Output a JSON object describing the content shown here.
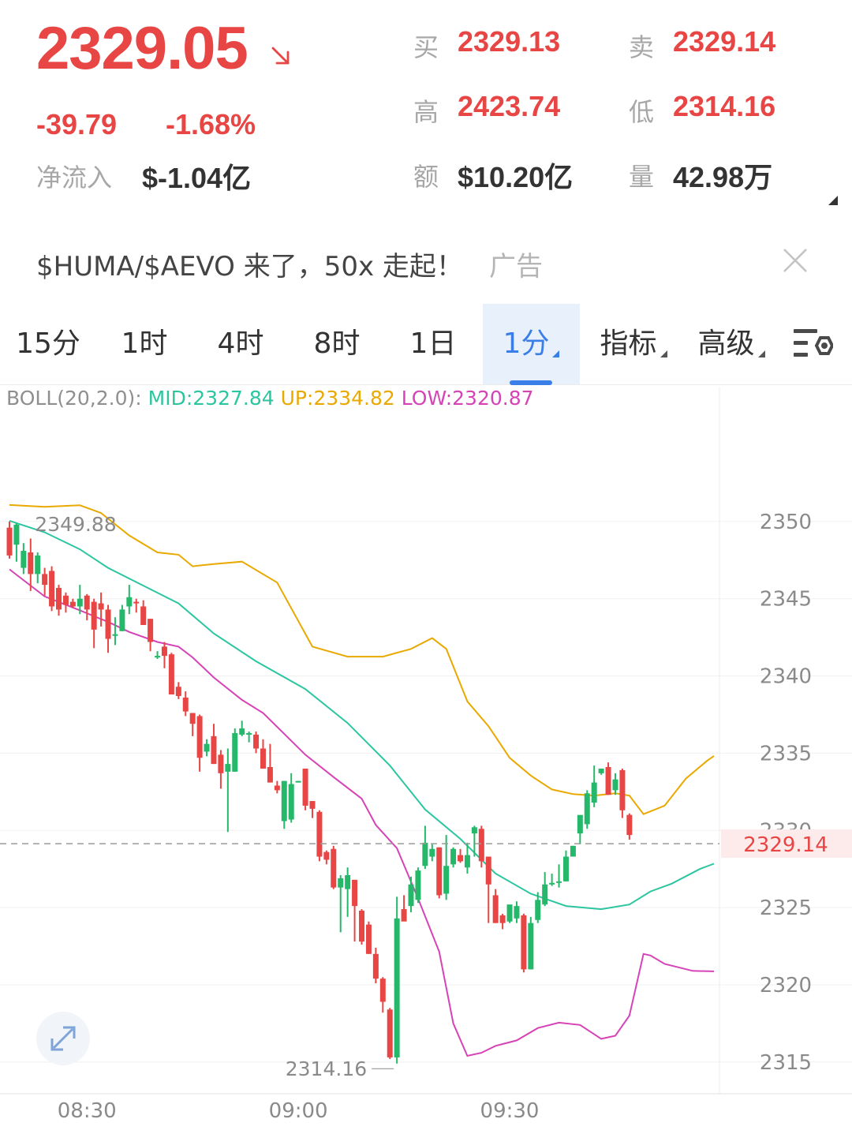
{
  "quote": {
    "last_price": "2329.05",
    "change": "-39.79",
    "change_pct": "-1.68%",
    "net_inflow_label": "净流入",
    "net_inflow_value": "$-1.04亿",
    "bid_label": "买",
    "bid_value": "2329.13",
    "ask_label": "卖",
    "ask_value": "2329.14",
    "high_label": "高",
    "high_value": "2423.74",
    "low_label": "低",
    "low_value": "2314.16",
    "amount_label": "额",
    "amount_value": "$10.20亿",
    "volume_label": "量",
    "volume_value": "42.98万",
    "down_color": "#e84545",
    "up_color": "#26b86a"
  },
  "ad": {
    "text": "$HUMA/$AEVO 来了，50x 走起！",
    "tag": "广告",
    "close_icon": "close-icon"
  },
  "tabs": [
    {
      "label": "15分",
      "active": false
    },
    {
      "label": "1时",
      "active": false
    },
    {
      "label": "4时",
      "active": false
    },
    {
      "label": "8时",
      "active": false
    },
    {
      "label": "1日",
      "active": false
    },
    {
      "label": "1分",
      "active": true
    },
    {
      "label": "指标",
      "active": false
    },
    {
      "label": "高级",
      "active": false
    }
  ],
  "settings_icon": "chart-settings-icon",
  "indicator": {
    "prefix": "BOLL(20,2.0):",
    "mid": "MID:2327.84",
    "up": "UP:2334.82",
    "low": "LOW:2320.87"
  },
  "chart_data": {
    "type": "candlestick",
    "interval": "1分",
    "y_ticks": [
      "2350",
      "2345",
      "2340",
      "2335",
      "2330",
      "2325",
      "2320",
      "2315"
    ],
    "ylim": [
      2313,
      2354
    ],
    "x_ticks": [
      {
        "label": "08:30",
        "index": 11
      },
      {
        "label": "09:00",
        "index": 41
      },
      {
        "label": "09:30",
        "index": 71
      }
    ],
    "current_price_label": "2329.14",
    "current_price": 2329.14,
    "max_label": "2349.88",
    "min_label": "2314.16",
    "colors": {
      "up": "#26b86a",
      "down": "#e84545",
      "mid": "#2bc6a0",
      "upper": "#e9a900",
      "lower": "#d643b6"
    },
    "candles": [
      [
        2349.6,
        2347.8,
        2350.0,
        2347.6
      ],
      [
        2348.5,
        2349.8,
        2349.9,
        2347.4
      ],
      [
        2347.0,
        2348.1,
        2348.6,
        2346.6
      ],
      [
        2348.0,
        2346.6,
        2348.9,
        2345.5
      ],
      [
        2346.6,
        2347.8,
        2348.0,
        2346.0
      ],
      [
        2346.6,
        2345.9,
        2347.0,
        2345.2
      ],
      [
        2346.8,
        2344.5,
        2347.1,
        2344.2
      ],
      [
        2345.7,
        2344.3,
        2345.9,
        2343.9
      ],
      [
        2345.2,
        2344.6,
        2345.4,
        2344.1
      ],
      [
        2344.8,
        2344.5,
        2345.0,
        2344.4
      ],
      [
        2344.5,
        2345.0,
        2345.9,
        2344.0
      ],
      [
        2345.2,
        2344.3,
        2345.3,
        2343.6
      ],
      [
        2344.8,
        2343.0,
        2345.0,
        2341.8
      ],
      [
        2344.7,
        2344.3,
        2345.4,
        2343.2
      ],
      [
        2344.3,
        2342.4,
        2344.6,
        2341.5
      ],
      [
        2342.6,
        2342.7,
        2343.8,
        2342.0
      ],
      [
        2342.9,
        2344.3,
        2344.6,
        2342.9
      ],
      [
        2344.5,
        2345.1,
        2345.9,
        2344.0
      ],
      [
        2344.8,
        2344.7,
        2345.0,
        2344.1
      ],
      [
        2344.5,
        2343.3,
        2344.9,
        2343.3
      ],
      [
        2343.7,
        2342.2,
        2343.7,
        2341.6
      ],
      [
        2341.3,
        2341.3,
        2341.6,
        2341.1
      ],
      [
        2341.9,
        2341.3,
        2342.2,
        2340.5
      ],
      [
        2341.4,
        2338.8,
        2341.5,
        2338.8
      ],
      [
        2339.3,
        2338.7,
        2339.6,
        2338.5
      ],
      [
        2338.6,
        2337.7,
        2339.0,
        2337.4
      ],
      [
        2337.6,
        2336.9,
        2337.6,
        2336.1
      ],
      [
        2337.4,
        2334.7,
        2337.5,
        2333.8
      ],
      [
        2335.1,
        2335.6,
        2335.9,
        2334.8
      ],
      [
        2336.1,
        2334.3,
        2336.9,
        2334.3
      ],
      [
        2334.9,
        2333.7,
        2335.2,
        2332.7
      ],
      [
        2333.8,
        2334.3,
        2335.3,
        2329.9
      ],
      [
        2333.8,
        2336.3,
        2336.6,
        2333.8
      ],
      [
        2336.2,
        2336.6,
        2337.1,
        2336.1
      ],
      [
        2336.3,
        2336.3,
        2336.4,
        2335.7
      ],
      [
        2336.2,
        2335.3,
        2336.4,
        2335.0
      ],
      [
        2335.3,
        2334.0,
        2335.9,
        2334.0
      ],
      [
        2334.1,
        2333.1,
        2335.6,
        2333.1
      ],
      [
        2332.9,
        2332.6,
        2333.2,
        2332.4
      ],
      [
        2330.6,
        2333.2,
        2333.2,
        2330.1
      ],
      [
        2330.7,
        2333.0,
        2333.7,
        2330.5
      ],
      [
        2333.1,
        2333.2,
        2333.2,
        2333.1
      ],
      [
        2334.0,
        2331.6,
        2334.0,
        2331.3
      ],
      [
        2331.9,
        2331.4,
        2331.9,
        2330.8
      ],
      [
        2331.2,
        2328.3,
        2331.3,
        2328.0
      ],
      [
        2328.6,
        2328.1,
        2328.7,
        2327.8
      ],
      [
        2328.8,
        2326.3,
        2329.0,
        2326.2
      ],
      [
        2326.3,
        2326.9,
        2327.1,
        2323.4
      ],
      [
        2326.2,
        2327.1,
        2327.6,
        2324.4
      ],
      [
        2326.8,
        2325.1,
        2326.8,
        2322.8
      ],
      [
        2324.8,
        2322.8,
        2324.9,
        2322.6
      ],
      [
        2323.9,
        2322.0,
        2324.1,
        2322.0
      ],
      [
        2322.0,
        2320.4,
        2322.4,
        2320.1
      ],
      [
        2320.4,
        2318.9,
        2320.5,
        2318.2
      ],
      [
        2318.4,
        2315.3,
        2318.5,
        2315.2
      ],
      [
        2315.3,
        2324.3,
        2325.7,
        2314.9
      ],
      [
        2324.9,
        2324.1,
        2325.8,
        2324.4
      ],
      [
        2325.1,
        2326.5,
        2327.0,
        2324.7
      ],
      [
        2325.5,
        2327.4,
        2327.6,
        2325.3
      ],
      [
        2327.7,
        2329.2,
        2330.3,
        2327.5
      ],
      [
        2328.3,
        2328.8,
        2329.1,
        2328.0
      ],
      [
        2328.9,
        2325.8,
        2328.9,
        2325.6
      ],
      [
        2325.9,
        2327.7,
        2329.7,
        2325.5
      ],
      [
        2327.8,
        2328.8,
        2328.9,
        2327.6
      ],
      [
        2328.4,
        2328.0,
        2328.8,
        2327.9
      ],
      [
        2327.6,
        2328.4,
        2329.2,
        2327.2
      ],
      [
        2329.8,
        2330.2,
        2330.3,
        2328.3
      ],
      [
        2330.1,
        2328.0,
        2330.3,
        2327.6
      ],
      [
        2328.3,
        2326.5,
        2328.3,
        2324.0
      ],
      [
        2325.8,
        2324.0,
        2326.2,
        2324.0
      ],
      [
        2324.5,
        2324.0,
        2324.6,
        2323.6
      ],
      [
        2324.1,
        2325.2,
        2324.9,
        2324.0
      ],
      [
        2324.3,
        2325.1,
        2325.4,
        2324.0
      ],
      [
        2324.5,
        2321.0,
        2324.6,
        2320.8
      ],
      [
        2321.0,
        2324.0,
        2324.4,
        2321.0
      ],
      [
        2324.2,
        2325.5,
        2326.0,
        2324.0
      ],
      [
        2325.2,
        2326.5,
        2327.3,
        2325.1
      ],
      [
        2326.6,
        2326.6,
        2327.2,
        2326.4
      ],
      [
        2326.6,
        2326.7,
        2327.8,
        2326.3
      ],
      [
        2326.7,
        2328.3,
        2328.7,
        2326.7
      ],
      [
        2328.3,
        2329.0,
        2329.0,
        2328.5
      ],
      [
        2329.8,
        2331.0,
        2330.7,
        2329.1
      ],
      [
        2330.4,
        2332.4,
        2332.6,
        2330.1
      ],
      [
        2331.8,
        2333.1,
        2334.2,
        2331.5
      ],
      [
        2333.7,
        2334.0,
        2334.0,
        2333.6
      ],
      [
        2334.1,
        2332.3,
        2334.4,
        2332.3
      ],
      [
        2332.6,
        2333.3,
        2333.7,
        2332.3
      ],
      [
        2333.9,
        2331.3,
        2334.0,
        2330.8
      ],
      [
        2331.0,
        2329.7,
        2331.1,
        2329.4
      ]
    ],
    "upper_band": [
      [
        0,
        2351.07
      ],
      [
        5,
        2350.95
      ],
      [
        10,
        2351.05
      ],
      [
        13,
        2350.55
      ],
      [
        17,
        2349.1
      ],
      [
        21,
        2348.0
      ],
      [
        24,
        2347.85
      ],
      [
        26,
        2347.1
      ],
      [
        29,
        2347.25
      ],
      [
        33,
        2347.4
      ],
      [
        38,
        2346.05
      ],
      [
        43,
        2341.9
      ],
      [
        48,
        2341.25
      ],
      [
        53,
        2341.25
      ],
      [
        57,
        2341.75
      ],
      [
        60,
        2342.45
      ],
      [
        62,
        2341.75
      ],
      [
        65,
        2338.35
      ],
      [
        68,
        2336.75
      ],
      [
        71,
        2334.7
      ],
      [
        74,
        2333.55
      ],
      [
        77,
        2332.65
      ],
      [
        80,
        2332.35
      ],
      [
        83,
        2332.25
      ],
      [
        86,
        2332.4
      ],
      [
        88,
        2332.25
      ],
      [
        90,
        2331.05
      ],
      [
        93,
        2331.6
      ],
      [
        96,
        2333.35
      ],
      [
        99,
        2334.5
      ],
      [
        100,
        2334.82
      ]
    ],
    "mid_band": [
      [
        0,
        2350.05
      ],
      [
        5,
        2349.3
      ],
      [
        10,
        2348.2
      ],
      [
        14,
        2347.0
      ],
      [
        19,
        2345.85
      ],
      [
        24,
        2344.7
      ],
      [
        29,
        2342.75
      ],
      [
        35,
        2340.95
      ],
      [
        42,
        2339.15
      ],
      [
        48,
        2336.95
      ],
      [
        54,
        2334.2
      ],
      [
        59,
        2331.35
      ],
      [
        64,
        2329.45
      ],
      [
        69,
        2327.2
      ],
      [
        74,
        2325.9
      ],
      [
        79,
        2325.1
      ],
      [
        84,
        2324.9
      ],
      [
        88,
        2325.2
      ],
      [
        91,
        2326.05
      ],
      [
        94,
        2326.55
      ],
      [
        98,
        2327.5
      ],
      [
        100,
        2327.84
      ]
    ],
    "lower_band": [
      [
        0,
        2346.9
      ],
      [
        5,
        2345.15
      ],
      [
        10,
        2344.25
      ],
      [
        14,
        2343.5
      ],
      [
        17,
        2342.85
      ],
      [
        21,
        2342.2
      ],
      [
        24,
        2341.9
      ],
      [
        26,
        2341.2
      ],
      [
        29,
        2339.9
      ],
      [
        33,
        2338.45
      ],
      [
        36,
        2337.6
      ],
      [
        39,
        2336.25
      ],
      [
        42,
        2334.9
      ],
      [
        46,
        2333.45
      ],
      [
        50,
        2332.05
      ],
      [
        52,
        2330.35
      ],
      [
        55,
        2328.85
      ],
      [
        58,
        2325.6
      ],
      [
        61,
        2322.15
      ],
      [
        63,
        2317.5
      ],
      [
        65,
        2315.4
      ],
      [
        67,
        2315.6
      ],
      [
        69,
        2316.05
      ],
      [
        72,
        2316.4
      ],
      [
        75,
        2317.2
      ],
      [
        78,
        2317.55
      ],
      [
        81,
        2317.4
      ],
      [
        84,
        2316.5
      ],
      [
        86,
        2316.7
      ],
      [
        88,
        2318.0
      ],
      [
        90,
        2322.0
      ],
      [
        91,
        2321.9
      ],
      [
        93,
        2321.35
      ],
      [
        97,
        2320.9
      ],
      [
        100,
        2320.87
      ]
    ]
  }
}
